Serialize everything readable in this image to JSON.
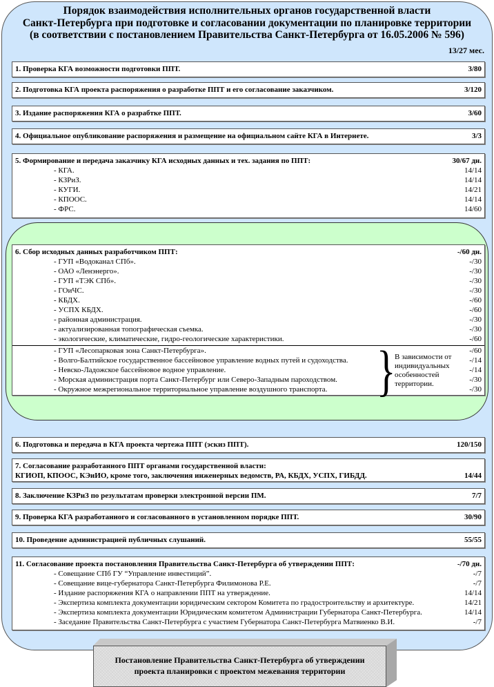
{
  "title": [
    "Порядок взаимодействия исполнительных органов государственной власти",
    "Санкт-Петербурга при подготовке и согласовании документации по планировке территории",
    "(в соответствии с постановлением Правительства Санкт-Петербурга от 16.05.2006 № 596)"
  ],
  "total": "13/27 мес.",
  "steps_top": [
    {
      "label": "1. Проверка КГА возможности подготовки ППТ.",
      "value": "3/80"
    },
    {
      "label": "2. Подготовка КГА проекта распоряжения о разработке ППТ и его согласование заказчиком.",
      "value": "3/120"
    },
    {
      "label": "3. Издание распоряжения КГА о разрабтке ППТ.",
      "value": "3/60"
    },
    {
      "label": "4. Официальное опубликование распоряжения и размещение на официальном сайте КГА в Интернете.",
      "value": "3/3"
    }
  ],
  "step5": {
    "label": "5. Формирование и передача заказчику КГА исходных данных и тех. задания по ППТ:",
    "value": "30/67 дн.",
    "items": [
      {
        "label": "- КГА.",
        "value": "14/14"
      },
      {
        "label": "- КЗРиЗ.",
        "value": "14/14"
      },
      {
        "label": "- КУГИ.",
        "value": "14/21"
      },
      {
        "label": "- КПООС.",
        "value": "14/14"
      },
      {
        "label": "- ФРС.",
        "value": "14/60"
      }
    ]
  },
  "step6": {
    "label": "6. Сбор исходных данных разработчиком ППТ:",
    "value": "-/60 дн.",
    "items": [
      {
        "label": "- ГУП «Водоканал СПб».",
        "value": "-/30"
      },
      {
        "label": "- ОАО «Ленэнерго».",
        "value": "-/30"
      },
      {
        "label": "- ГУП «ТЭК СПб».",
        "value": "-/30"
      },
      {
        "label": "- ГОиЧС.",
        "value": "-/30"
      },
      {
        "label": "- КБДХ.",
        "value": "-/60"
      },
      {
        "label": "- УСПХ КБДХ.",
        "value": "-/60"
      },
      {
        "label": "- районная администрация.",
        "value": "-/30"
      },
      {
        "label": "- актуализированная топографическая съемка.",
        "value": "-/30"
      },
      {
        "label": "- экологические, климатические, гидро-геологические характеристики.",
        "value": "-/60"
      }
    ],
    "conditional_items": [
      {
        "label": "- ГУП «Лесопарковая зона Санкт-Петербурга».",
        "value": "-/60"
      },
      {
        "label": "- Волго-Балтийское государственное бассейновое управление водных путей и судоходства.",
        "value": "-/14"
      },
      {
        "label": "- Невско-Ладожское бассейновое водное управление.",
        "value": "-/14"
      },
      {
        "label": "- Морская администрация порта Санкт-Петербург или Северо-Западным пароходством.",
        "value": "-/30"
      },
      {
        "label": "- Окружное межрегиональное территориальное управление воздушного транспорта.",
        "value": "-/30"
      }
    ],
    "conditional_note": "В зависимости от индивидуальных особенностей территории."
  },
  "steps_mid": [
    {
      "label": "6. Подготовка и передача в КГА проекта чертежа ППТ (эскиз ППТ).",
      "value": "120/150"
    }
  ],
  "step7": {
    "line1": "7. Согласование разработанного ППТ органами государственной власти:",
    "line2": "КГИОП, КПООС, КЭиИО, кроме того, заключения инженерных ведомств, РА, КБДХ, УСПХ, ГИБДД.",
    "value": "14/44"
  },
  "steps_low": [
    {
      "label": "8. Заключение КЗРиЗ по результатам проверки электронной версии ПМ.",
      "value": "7/7"
    },
    {
      "label": "9. Проверка КГА разработанного и согласованного в установленном порядке ППТ.",
      "value": "30/90"
    },
    {
      "label": "10. Проведение администрацией публичных слушаний.",
      "value": "55/55"
    }
  ],
  "step11": {
    "label": "11. Согласование проекта постановления Правительства Санкт-Петербурга об утверждении ППТ:",
    "value": "-/70 дн.",
    "items": [
      {
        "label": "- Совещание СПб ГУ “Управление инвестиций”.",
        "value": "-/7"
      },
      {
        "label": "- Совещание вице-губернатора Санкт-Петербурга Филимонова Р.Е.",
        "value": "-/7"
      },
      {
        "label": "- Издание распоряжения КГА о направлении ППТ на утверждение.",
        "value": "14/14"
      },
      {
        "label": "- Экспертиза комплекта документации юридическим сектором Комитета по градостроительству и архитектуре.",
        "value": "14/21"
      },
      {
        "label": "- Экспертиза комплекта документации Юридическим комитетом Администрации Губернатора Санкт-Петербурга.",
        "value": "14/14"
      },
      {
        "label": "- Заседание Правительства Санкт-Петербурга с участием Губернатора Санкт-Петербурга Матвиенко В.И.",
        "value": "-/7"
      }
    ]
  },
  "final": [
    "Постановление Правительства Санкт-Петербурга об утверждении",
    "проекта планировки с проектом межевания территории"
  ],
  "colors": {
    "outer_bg": "#cfe6fc",
    "inner_bg": "#ccffcc",
    "box_bg": "#ffffff"
  }
}
